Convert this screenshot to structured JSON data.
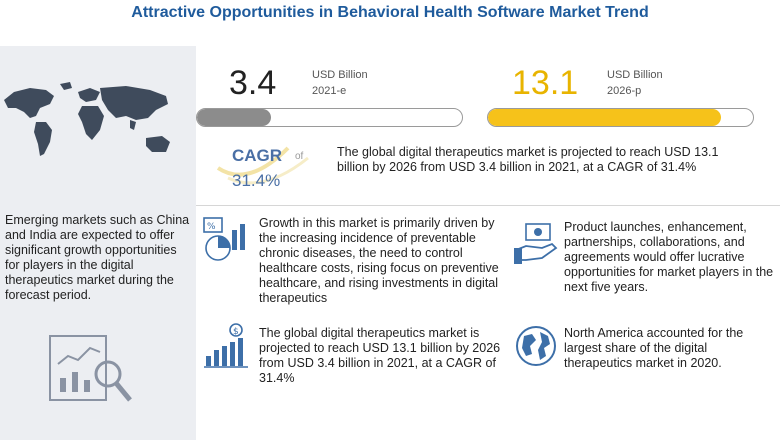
{
  "title": "Attractive Opportunities  in Behavioral Health Software Market Trend",
  "market_2021": {
    "value": "3.4",
    "unit": "USD Billion",
    "year": "2021-e",
    "fill_fraction": 0.28
  },
  "market_2026": {
    "value": "13.1",
    "unit": "USD Billion",
    "year": "2026-p",
    "fill_fraction": 0.88
  },
  "cagr": {
    "label": "CAGR",
    "value": "31.4%",
    "of_text": "of"
  },
  "summary": "The global digital therapeutics market is projected to reach USD 13.1 billion by 2026 from USD 3.4 billion in 2021, at a CAGR of 31.4%",
  "left_text": "Emerging markets such as China and India are expected to offer significant growth opportunities for players in the digital therapeutics market during the forecast period.",
  "points": {
    "growth": "Growth in this market is primarily driven by the increasing incidence of preventable chronic diseases, the need to control healthcare costs, rising focus on preventive healthcare, and rising investments in digital therapeutics",
    "projection": "The global digital therapeutics market is projected to reach USD 13.1 billion by 2026 from USD 3.4 billion in 2021, at a CAGR of 31.4%",
    "launches": "Product launches, enhancement, partnerships, collaborations, and agreements would offer lucrative opportunities for market players in the next five years.",
    "north_america": "North America accounted for the largest share of the digital therapeutics market in 2020."
  },
  "colors": {
    "title": "#1f5b9c",
    "bar_2021": "#8c8c8c",
    "bar_2026": "#f6c21a",
    "num_2026": "#e8b400",
    "cagr": "#4a6fa5",
    "icon": "#3d6fa8"
  }
}
